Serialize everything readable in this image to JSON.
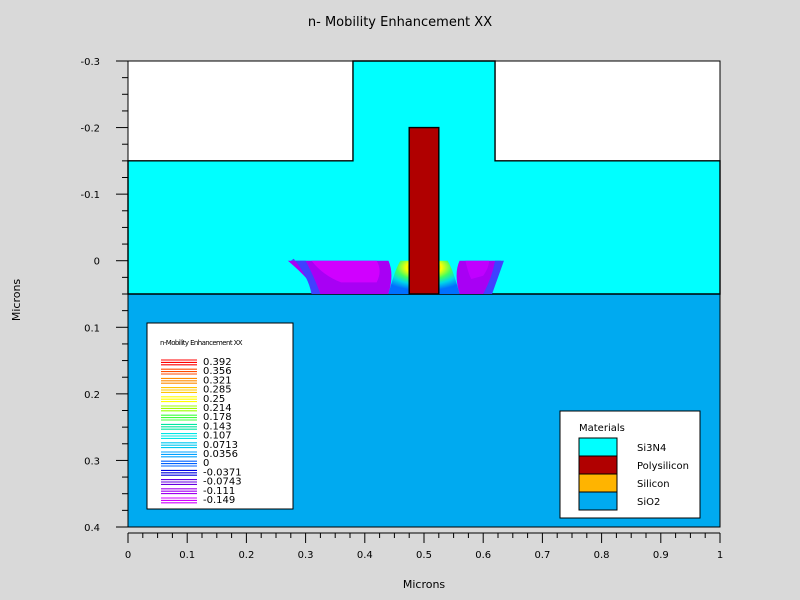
{
  "chart_data": {
    "type": "heatmap",
    "title": "n- Mobility Enhancement XX",
    "xlabel": "Microns",
    "ylabel": "Microns",
    "xlim": [
      0,
      1
    ],
    "ylim": [
      -0.3,
      0.4
    ],
    "y_inverted": true,
    "x_ticks": [
      "0",
      "0.1",
      "0.2",
      "0.3",
      "0.4",
      "0.5",
      "0.6",
      "0.7",
      "0.8",
      "0.9",
      "1"
    ],
    "y_ticks": [
      "-0.3",
      "-0.2",
      "-0.1",
      "0",
      "0.1",
      "0.2",
      "0.3",
      "0.4"
    ],
    "contour_legend": {
      "title": "n-Mobility Enhancement XX",
      "levels": [
        "0.392",
        "0.356",
        "0.321",
        "0.285",
        "0.25",
        "0.214",
        "0.178",
        "0.143",
        "0.107",
        "0.0713",
        "0.0356",
        "0",
        "-0.0371",
        "-0.0743",
        "-0.111",
        "-0.149"
      ],
      "colors": [
        "#ff0000",
        "#ff4a00",
        "#ff8c00",
        "#ffc400",
        "#ffff00",
        "#9cff00",
        "#3cff3c",
        "#00e6a0",
        "#00e6e6",
        "#00c8f0",
        "#00a0ff",
        "#0060ff",
        "#0000e0",
        "#6400e0",
        "#a000f0",
        "#d000ff"
      ]
    },
    "materials_legend": {
      "title": "Materials",
      "items": [
        {
          "name": "Si3N4",
          "color": "#00ffff"
        },
        {
          "name": "Polysilicon",
          "color": "#b00000"
        },
        {
          "name": "Silicon",
          "color": "#ffb400"
        },
        {
          "name": "SiO2",
          "color": "#00aaf0"
        }
      ]
    },
    "regions": {
      "nitride_layer": {
        "x": [
          0,
          1
        ],
        "y": [
          -0.15,
          0.05
        ]
      },
      "nitride_cap": {
        "x": [
          0.38,
          0.62
        ],
        "y": [
          -0.3,
          -0.15
        ]
      },
      "polysilicon_gate": {
        "x": [
          0.475,
          0.525
        ],
        "y": [
          -0.2,
          0.05
        ]
      },
      "silicon_channel": {
        "x": [
          0,
          1
        ],
        "y": [
          0.05,
          0
        ]
      },
      "oxide_substrate": {
        "x": [
          0,
          1
        ],
        "y": [
          0,
          0.4
        ]
      }
    }
  }
}
